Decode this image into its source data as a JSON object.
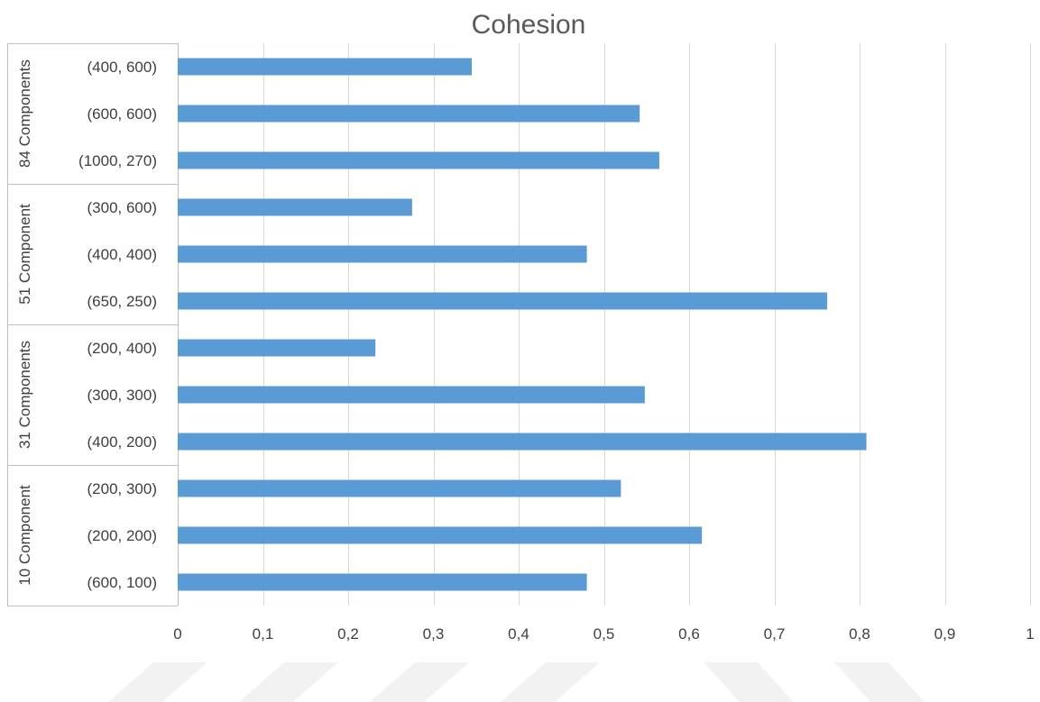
{
  "chart_data": {
    "type": "bar",
    "orientation": "horizontal",
    "title": "Cohesion",
    "xlabel": "",
    "ylabel": "",
    "xlim": [
      0,
      1
    ],
    "x_ticks": [
      "0",
      "0,1",
      "0,2",
      "0,3",
      "0,4",
      "0,5",
      "0,6",
      "0,7",
      "0,8",
      "0,9",
      "1"
    ],
    "grid": true,
    "legend": "none",
    "bar_color": "#5b9bd5",
    "groups": [
      {
        "name": "84 Components",
        "categories": [
          "(400, 600)",
          "(600, 600)",
          "(1000, 270)"
        ],
        "values": [
          0.345,
          0.542,
          0.565
        ]
      },
      {
        "name": "51 Component",
        "categories": [
          "(300, 600)",
          "(400, 400)",
          "(650, 250)"
        ],
        "values": [
          0.275,
          0.48,
          0.762
        ]
      },
      {
        "name": "31 Components",
        "categories": [
          "(200, 400)",
          "(300, 300)",
          "(400, 200)"
        ],
        "values": [
          0.232,
          0.548,
          0.808
        ]
      },
      {
        "name": "10 Component",
        "categories": [
          "(200, 300)",
          "(200, 200)",
          "(600, 100)"
        ],
        "values": [
          0.52,
          0.615,
          0.48
        ]
      }
    ]
  }
}
